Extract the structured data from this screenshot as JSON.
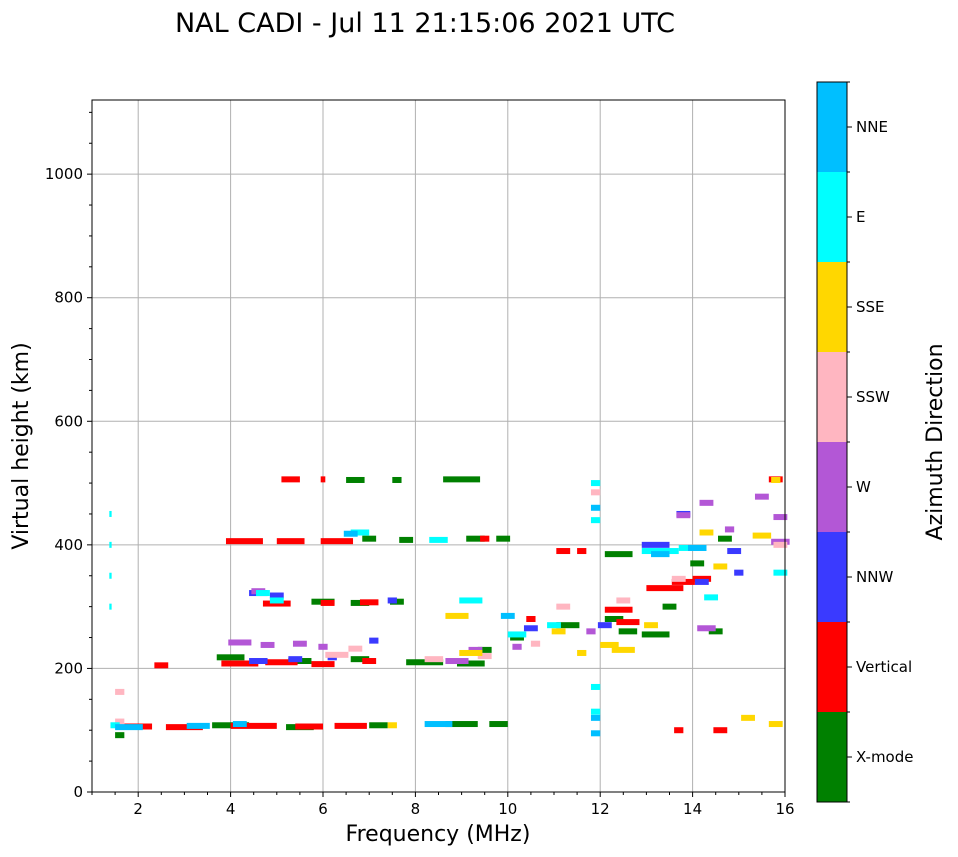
{
  "chart_data": {
    "type": "scatter",
    "title": "NAL CADI - Jul 11 21:15:06 2021 UTC",
    "xlabel": "Frequency (MHz)",
    "ylabel": "Virtual height (km)",
    "xlim": [
      1,
      16
    ],
    "ylim": [
      0,
      1120
    ],
    "xticks": [
      2,
      4,
      6,
      8,
      10,
      12,
      14,
      16
    ],
    "yticks": [
      0,
      200,
      400,
      600,
      800,
      1000
    ],
    "grid": true,
    "colorbar": {
      "title": "Azimuth Direction",
      "categories": [
        "X-mode",
        "Vertical",
        "NNW",
        "W",
        "SSW",
        "SSE",
        "E",
        "NNE"
      ],
      "colors": [
        "#008000",
        "#ff0000",
        "#3a3aff",
        "#b357d6",
        "#ffb6c1",
        "#ffd700",
        "#00ffff",
        "#00bfff"
      ]
    },
    "series": [
      {
        "name": "X-mode",
        "points": [
          [
            1.6,
            92,
            0.2
          ],
          [
            4.0,
            108,
            0.8
          ],
          [
            5.5,
            105,
            0.6
          ],
          [
            7.2,
            108,
            0.4
          ],
          [
            9.0,
            110,
            0.7
          ],
          [
            9.8,
            110,
            0.4
          ],
          [
            4.0,
            218,
            0.6
          ],
          [
            5.5,
            212,
            0.5
          ],
          [
            6.8,
            215,
            0.4
          ],
          [
            8.2,
            210,
            0.8
          ],
          [
            9.2,
            208,
            0.6
          ],
          [
            6.0,
            308,
            0.5
          ],
          [
            6.8,
            306,
            0.4
          ],
          [
            7.6,
            308,
            0.3
          ],
          [
            7.0,
            410,
            0.3
          ],
          [
            7.8,
            408,
            0.3
          ],
          [
            9.3,
            410,
            0.4
          ],
          [
            9.9,
            410,
            0.3
          ],
          [
            6.7,
            505,
            0.4
          ],
          [
            7.6,
            505,
            0.2
          ],
          [
            9.0,
            506,
            0.8
          ],
          [
            9.5,
            230,
            0.3
          ],
          [
            10.2,
            250,
            0.3
          ],
          [
            11.3,
            270,
            0.5
          ],
          [
            12.3,
            280,
            0.4
          ],
          [
            12.6,
            260,
            0.4
          ],
          [
            13.2,
            255,
            0.6
          ],
          [
            12.4,
            385,
            0.6
          ],
          [
            13.5,
            300,
            0.3
          ],
          [
            14.1,
            370,
            0.3
          ],
          [
            14.5,
            260,
            0.3
          ],
          [
            14.7,
            410,
            0.3
          ]
        ]
      },
      {
        "name": "Vertical",
        "points": [
          [
            2.0,
            106,
            0.6
          ],
          [
            3.0,
            105,
            0.8
          ],
          [
            4.5,
            107,
            1.0
          ],
          [
            5.7,
            106,
            0.6
          ],
          [
            6.6,
            107,
            0.7
          ],
          [
            4.2,
            208,
            0.8
          ],
          [
            5.1,
            210,
            0.7
          ],
          [
            6.0,
            207,
            0.5
          ],
          [
            7.0,
            212,
            0.3
          ],
          [
            2.5,
            205,
            0.3
          ],
          [
            5.0,
            305,
            0.6
          ],
          [
            6.1,
            306,
            0.3
          ],
          [
            7.0,
            307,
            0.4
          ],
          [
            4.3,
            406,
            0.8
          ],
          [
            5.3,
            406,
            0.6
          ],
          [
            6.3,
            406,
            0.7
          ],
          [
            9.5,
            410,
            0.2
          ],
          [
            5.3,
            506,
            0.4
          ],
          [
            6.0,
            506,
            0.1
          ],
          [
            10.5,
            280,
            0.2
          ],
          [
            11.2,
            390,
            0.3
          ],
          [
            11.6,
            390,
            0.2
          ],
          [
            12.4,
            295,
            0.6
          ],
          [
            12.6,
            275,
            0.5
          ],
          [
            13.4,
            330,
            0.8
          ],
          [
            13.8,
            340,
            0.5
          ],
          [
            14.2,
            345,
            0.4
          ],
          [
            15.8,
            506,
            0.3
          ],
          [
            14.6,
            100,
            0.3
          ],
          [
            13.7,
            100,
            0.2
          ]
        ]
      },
      {
        "name": "NNW",
        "points": [
          [
            4.6,
            212,
            0.4
          ],
          [
            5.4,
            215,
            0.3
          ],
          [
            6.2,
            218,
            0.2
          ],
          [
            7.1,
            245,
            0.2
          ],
          [
            4.6,
            322,
            0.4
          ],
          [
            5.0,
            318,
            0.3
          ],
          [
            7.5,
            310,
            0.2
          ],
          [
            10.5,
            265,
            0.3
          ],
          [
            12.1,
            270,
            0.3
          ],
          [
            13.2,
            400,
            0.6
          ],
          [
            13.8,
            450,
            0.3
          ],
          [
            14.2,
            340,
            0.3
          ],
          [
            14.9,
            390,
            0.3
          ],
          [
            15.0,
            355,
            0.2
          ]
        ]
      },
      {
        "name": "W",
        "points": [
          [
            4.2,
            242,
            0.5
          ],
          [
            4.8,
            238,
            0.3
          ],
          [
            5.5,
            240,
            0.3
          ],
          [
            6.0,
            235,
            0.2
          ],
          [
            4.6,
            325,
            0.3
          ],
          [
            8.9,
            212,
            0.5
          ],
          [
            9.3,
            230,
            0.3
          ],
          [
            10.2,
            235,
            0.2
          ],
          [
            11.8,
            260,
            0.2
          ],
          [
            13.8,
            448,
            0.3
          ],
          [
            14.3,
            468,
            0.3
          ],
          [
            14.8,
            425,
            0.2
          ],
          [
            15.5,
            478,
            0.3
          ],
          [
            15.9,
            445,
            0.3
          ],
          [
            15.9,
            405,
            0.4
          ],
          [
            14.3,
            265,
            0.4
          ]
        ]
      },
      {
        "name": "SSW",
        "points": [
          [
            1.6,
            162,
            0.2
          ],
          [
            1.6,
            114,
            0.2
          ],
          [
            6.3,
            222,
            0.5
          ],
          [
            6.7,
            232,
            0.3
          ],
          [
            8.4,
            215,
            0.4
          ],
          [
            9.5,
            220,
            0.3
          ],
          [
            10.6,
            240,
            0.2
          ],
          [
            11.2,
            300,
            0.3
          ],
          [
            11.9,
            485,
            0.2
          ],
          [
            12.5,
            310,
            0.3
          ],
          [
            13.7,
            345,
            0.3
          ],
          [
            15.9,
            400,
            0.3
          ]
        ]
      },
      {
        "name": "SSE",
        "points": [
          [
            7.5,
            108,
            0.2
          ],
          [
            8.9,
            285,
            0.5
          ],
          [
            9.2,
            225,
            0.5
          ],
          [
            11.1,
            260,
            0.3
          ],
          [
            11.6,
            225,
            0.2
          ],
          [
            12.2,
            238,
            0.4
          ],
          [
            12.5,
            230,
            0.5
          ],
          [
            13.1,
            270,
            0.3
          ],
          [
            14.6,
            365,
            0.3
          ],
          [
            14.3,
            420,
            0.3
          ],
          [
            15.2,
            120,
            0.3
          ],
          [
            15.8,
            110,
            0.3
          ],
          [
            15.8,
            505,
            0.2
          ],
          [
            15.5,
            415,
            0.4
          ]
        ]
      },
      {
        "name": "E",
        "points": [
          [
            1.4,
            450,
            0.05
          ],
          [
            1.4,
            400,
            0.05
          ],
          [
            1.4,
            350,
            0.05
          ],
          [
            1.4,
            300,
            0.05
          ],
          [
            1.5,
            108,
            0.2
          ],
          [
            4.7,
            322,
            0.3
          ],
          [
            5.0,
            310,
            0.3
          ],
          [
            6.8,
            420,
            0.4
          ],
          [
            8.5,
            408,
            0.4
          ],
          [
            9.2,
            310,
            0.5
          ],
          [
            10.2,
            255,
            0.4
          ],
          [
            11.0,
            270,
            0.3
          ],
          [
            11.9,
            440,
            0.2
          ],
          [
            11.9,
            500,
            0.2
          ],
          [
            11.9,
            170,
            0.2
          ],
          [
            11.9,
            130,
            0.2
          ],
          [
            13.3,
            390,
            0.8
          ],
          [
            14.0,
            395,
            0.6
          ],
          [
            14.4,
            315,
            0.3
          ],
          [
            15.9,
            355,
            0.3
          ]
        ]
      },
      {
        "name": "NNE",
        "points": [
          [
            1.8,
            105,
            0.6
          ],
          [
            3.3,
            107,
            0.5
          ],
          [
            4.2,
            110,
            0.3
          ],
          [
            8.5,
            110,
            0.6
          ],
          [
            6.6,
            418,
            0.3
          ],
          [
            10.0,
            285,
            0.3
          ],
          [
            11.9,
            460,
            0.2
          ],
          [
            11.9,
            120,
            0.2
          ],
          [
            11.9,
            95,
            0.2
          ],
          [
            13.3,
            385,
            0.4
          ],
          [
            14.1,
            395,
            0.4
          ]
        ]
      }
    ]
  }
}
